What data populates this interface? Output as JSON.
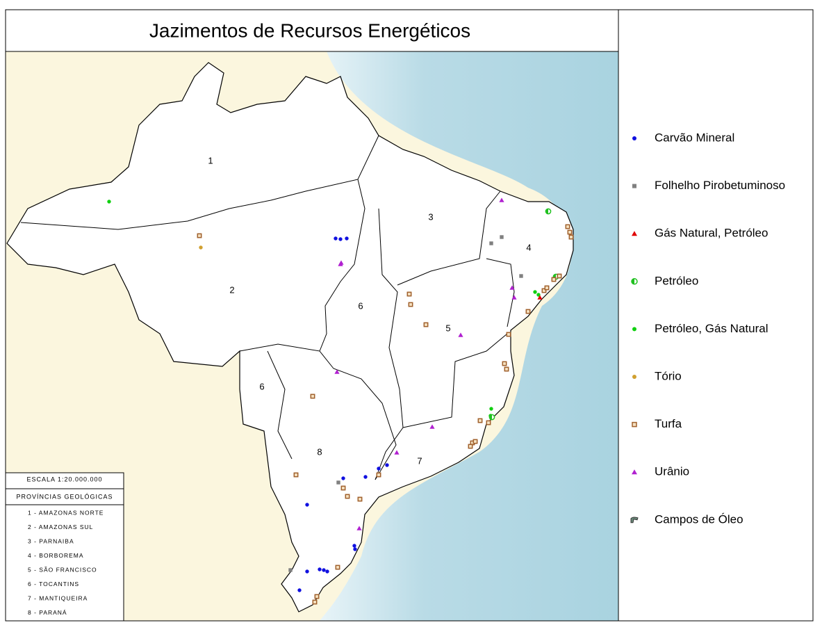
{
  "header": {
    "title": "Jazimentos de Recursos Energéticos"
  },
  "legend": {
    "items": [
      {
        "label": "Carvão Mineral"
      },
      {
        "label": "Folhelho Pirobetuminoso"
      },
      {
        "label": "Gás Natural, Petróleo"
      },
      {
        "label": "Petróleo"
      },
      {
        "label": "Petróleo, Gás Natural"
      },
      {
        "label": "Tório"
      },
      {
        "label": "Turfa"
      },
      {
        "label": "Urânio"
      },
      {
        "label": "Campos de Óleo"
      }
    ]
  },
  "map": {
    "province_labels": [
      "1",
      "2",
      "3",
      "4",
      "5",
      "6",
      "6",
      "7",
      "8"
    ]
  },
  "scale": "ESCALA 1:20.000.000",
  "provinces": {
    "title": "PROVÍNCIAS GEOLÓGICAS",
    "items": [
      "1 - AMAZONAS NORTE",
      "2 - AMAZONAS SUL",
      "3 - PARNAIBA",
      "4 - BORBOREMA",
      "5 - SÃO FRANCISCO",
      "6 - TOCANTINS",
      "7 - MANTIQUEIRA",
      "8 - PARANÁ"
    ]
  }
}
